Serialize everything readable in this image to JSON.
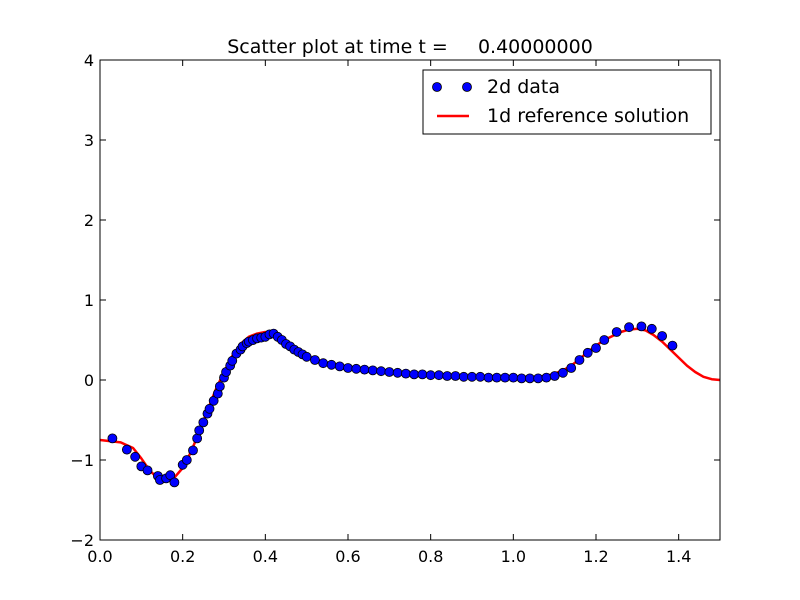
{
  "chart_data": {
    "type": "scatter",
    "title": "Scatter plot at time t =     0.40000000",
    "xlabel": "",
    "ylabel": "",
    "xlim": [
      0.0,
      1.5
    ],
    "ylim": [
      -2,
      4
    ],
    "xticks": [
      "0.0",
      "0.2",
      "0.4",
      "0.6",
      "0.8",
      "1.0",
      "1.2",
      "1.4"
    ],
    "xtick_values": [
      0.0,
      0.2,
      0.4,
      0.6,
      0.8,
      1.0,
      1.2,
      1.4
    ],
    "yticks": [
      "−2",
      "−1",
      "0",
      "1",
      "2",
      "3",
      "4"
    ],
    "ytick_values": [
      -2,
      -1,
      0,
      1,
      2,
      3,
      4
    ],
    "grid": false,
    "legend_position": "top-right",
    "series": [
      {
        "name": "2d data",
        "kind": "markers",
        "color": "#0000ff",
        "edge_color": "#000000",
        "x": [
          0.03,
          0.065,
          0.085,
          0.1,
          0.115,
          0.14,
          0.145,
          0.16,
          0.17,
          0.18,
          0.2,
          0.21,
          0.225,
          0.235,
          0.24,
          0.25,
          0.26,
          0.265,
          0.275,
          0.285,
          0.29,
          0.3,
          0.305,
          0.315,
          0.32,
          0.33,
          0.34,
          0.345,
          0.355,
          0.36,
          0.37,
          0.38,
          0.39,
          0.4,
          0.41,
          0.42,
          0.43,
          0.44,
          0.45,
          0.46,
          0.47,
          0.48,
          0.49,
          0.5,
          0.52,
          0.54,
          0.56,
          0.58,
          0.6,
          0.62,
          0.64,
          0.66,
          0.68,
          0.7,
          0.72,
          0.74,
          0.76,
          0.78,
          0.8,
          0.82,
          0.84,
          0.86,
          0.88,
          0.9,
          0.92,
          0.94,
          0.96,
          0.98,
          1.0,
          1.02,
          1.04,
          1.06,
          1.08,
          1.1,
          1.12,
          1.14,
          1.16,
          1.18,
          1.2,
          1.22,
          1.25,
          1.28,
          1.31,
          1.335,
          1.36,
          1.385
        ],
        "y": [
          -0.73,
          -0.87,
          -0.96,
          -1.08,
          -1.13,
          -1.2,
          -1.25,
          -1.23,
          -1.19,
          -1.28,
          -1.06,
          -1.0,
          -0.88,
          -0.73,
          -0.63,
          -0.53,
          -0.42,
          -0.36,
          -0.26,
          -0.17,
          -0.08,
          0.03,
          0.1,
          0.18,
          0.24,
          0.33,
          0.38,
          0.42,
          0.46,
          0.48,
          0.5,
          0.52,
          0.53,
          0.54,
          0.57,
          0.58,
          0.54,
          0.5,
          0.45,
          0.42,
          0.38,
          0.35,
          0.32,
          0.29,
          0.25,
          0.21,
          0.19,
          0.17,
          0.15,
          0.14,
          0.13,
          0.12,
          0.11,
          0.1,
          0.09,
          0.08,
          0.07,
          0.07,
          0.06,
          0.06,
          0.05,
          0.05,
          0.04,
          0.04,
          0.04,
          0.03,
          0.03,
          0.03,
          0.03,
          0.02,
          0.02,
          0.02,
          0.03,
          0.05,
          0.09,
          0.15,
          0.25,
          0.34,
          0.4,
          0.5,
          0.6,
          0.66,
          0.67,
          0.64,
          0.55,
          0.43
        ]
      },
      {
        "name": "1d reference solution",
        "kind": "line",
        "color": "#ff0000",
        "x": [
          0.0,
          0.05,
          0.08,
          0.1,
          0.12,
          0.14,
          0.16,
          0.18,
          0.2,
          0.22,
          0.24,
          0.26,
          0.28,
          0.3,
          0.32,
          0.34,
          0.36,
          0.38,
          0.4,
          0.42,
          0.44,
          0.46,
          0.48,
          0.5,
          0.55,
          0.6,
          0.65,
          0.7,
          0.8,
          0.9,
          1.0,
          1.05,
          1.08,
          1.1,
          1.12,
          1.14,
          1.16,
          1.18,
          1.2,
          1.22,
          1.24,
          1.26,
          1.28,
          1.3,
          1.32,
          1.34,
          1.36,
          1.38,
          1.4,
          1.42,
          1.44,
          1.46,
          1.48,
          1.5
        ],
        "y": [
          -0.75,
          -0.78,
          -0.85,
          -0.98,
          -1.13,
          -1.23,
          -1.26,
          -1.22,
          -1.1,
          -0.9,
          -0.65,
          -0.38,
          -0.12,
          0.1,
          0.3,
          0.45,
          0.54,
          0.58,
          0.6,
          0.56,
          0.5,
          0.43,
          0.36,
          0.3,
          0.21,
          0.16,
          0.12,
          0.1,
          0.07,
          0.05,
          0.04,
          0.04,
          0.05,
          0.08,
          0.12,
          0.18,
          0.26,
          0.35,
          0.43,
          0.5,
          0.55,
          0.6,
          0.63,
          0.64,
          0.62,
          0.56,
          0.48,
          0.38,
          0.28,
          0.18,
          0.1,
          0.04,
          0.01,
          0.0
        ]
      }
    ]
  }
}
